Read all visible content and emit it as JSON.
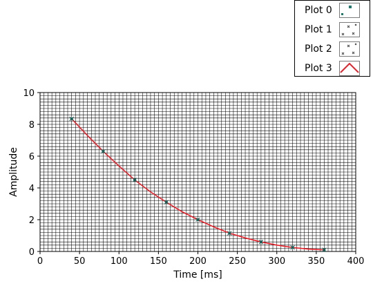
{
  "legend": {
    "items": [
      {
        "label": "Plot 0",
        "icon": "point-marker-icon",
        "color": "#1f7a6e"
      },
      {
        "label": "Plot 1",
        "icon": "x-markers-icon",
        "color": "#444444"
      },
      {
        "label": "Plot 2",
        "icon": "x-markers-icon",
        "color": "#444444"
      },
      {
        "label": "Plot 3",
        "icon": "red-line-icon",
        "color": "#e8202a"
      }
    ]
  },
  "chart_data": {
    "type": "line",
    "xlabel": "Time [ms]",
    "ylabel": "Amplitude",
    "xlim": [
      0,
      400
    ],
    "ylim": [
      0,
      10
    ],
    "x_ticks": [
      "0",
      "50",
      "100",
      "150",
      "200",
      "250",
      "300",
      "350",
      "400"
    ],
    "y_ticks": [
      "0",
      "2",
      "4",
      "6",
      "8",
      "10"
    ],
    "grid": true,
    "legend_position": "top-right",
    "series": [
      {
        "name": "Plot 0",
        "style": "markers",
        "color": "#1f7a6e",
        "x": [
          40,
          80,
          120,
          160,
          200,
          240,
          280,
          320,
          360
        ],
        "y": [
          8.35,
          6.3,
          4.5,
          3.1,
          2.0,
          1.15,
          0.6,
          0.25,
          0.1
        ]
      },
      {
        "name": "Plot 3",
        "style": "line",
        "color": "#e8202a",
        "x": [
          40,
          60,
          80,
          100,
          120,
          140,
          160,
          180,
          200,
          220,
          240,
          260,
          280,
          300,
          320,
          340,
          360
        ],
        "y": [
          8.35,
          7.3,
          6.3,
          5.38,
          4.5,
          3.75,
          3.1,
          2.5,
          2.0,
          1.55,
          1.15,
          0.85,
          0.6,
          0.4,
          0.25,
          0.15,
          0.1
        ]
      }
    ]
  }
}
